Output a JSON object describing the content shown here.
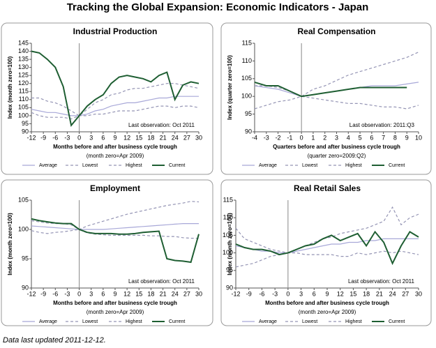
{
  "title": "Tracking the Global Expansion: Economic Indicators - Japan",
  "footer": "Data last updated 2011-12-12.",
  "chart_data": [
    {
      "type": "line",
      "title": "Industrial Production",
      "ylabel": "Index (month zero=100)",
      "xlabel": "Months before and after business cycle trough",
      "x_note": "(month zero=Apr 2009)",
      "annotation": "Last observation: Oct 2011",
      "x": [
        -12,
        -10,
        -8,
        -6,
        -4,
        -2,
        0,
        2,
        4,
        6,
        8,
        10,
        12,
        14,
        16,
        18,
        20,
        22,
        24,
        26,
        28,
        30
      ],
      "xlim": [
        -12,
        30
      ],
      "xticks": [
        -12,
        -9,
        -6,
        -3,
        0,
        3,
        6,
        9,
        12,
        15,
        18,
        21,
        24,
        27,
        30
      ],
      "ylim": [
        90,
        145
      ],
      "yticks": [
        90,
        95,
        100,
        105,
        110,
        115,
        120,
        125,
        130,
        135,
        140,
        145
      ],
      "series": [
        {
          "name": "Average",
          "color": "#a8a8d8",
          "dashed": false,
          "values": [
            104,
            103,
            102,
            102,
            101,
            100,
            100,
            101,
            103,
            104,
            106,
            107,
            108,
            108,
            109,
            110,
            111,
            111,
            112,
            112,
            112,
            112
          ]
        },
        {
          "name": "Lowest",
          "color": "#9494b4",
          "dashed": true,
          "values": [
            102,
            100,
            99,
            99,
            99,
            98,
            100,
            100,
            101,
            101,
            102,
            103,
            103,
            103,
            104,
            105,
            106,
            106,
            105,
            106,
            106,
            105
          ]
        },
        {
          "name": "Highest",
          "color": "#9494b4",
          "dashed": true,
          "values": [
            111,
            111,
            109,
            108,
            106,
            103,
            100,
            104,
            108,
            110,
            113,
            114,
            116,
            117,
            117,
            118,
            119,
            120,
            120,
            119,
            118,
            117
          ]
        },
        {
          "name": "Current",
          "color": "#1e5e32",
          "dashed": false,
          "values": [
            140,
            139,
            135,
            130,
            118,
            94,
            100,
            106,
            110,
            113,
            120,
            124,
            125,
            124,
            123,
            121,
            125,
            127,
            110,
            119,
            121,
            120
          ]
        }
      ]
    },
    {
      "type": "line",
      "title": "Real Compensation",
      "ylabel": "Index (quarter zero=100)",
      "xlabel": "Quarters before and after business cycle trough",
      "x_note": "(quarter zero=2009:Q2)",
      "annotation": "Last observation: 2011:Q3",
      "x": [
        -4,
        -3,
        -2,
        -1,
        0,
        1,
        2,
        3,
        4,
        5,
        6,
        7,
        8,
        9,
        10
      ],
      "xlim": [
        -4,
        10
      ],
      "xticks": [
        -4,
        -3,
        -2,
        -1,
        0,
        1,
        2,
        3,
        4,
        5,
        6,
        7,
        8,
        9,
        10
      ],
      "ylim": [
        90,
        115
      ],
      "yticks": [
        90,
        95,
        100,
        105,
        110,
        115
      ],
      "series": [
        {
          "name": "Average",
          "color": "#a8a8d8",
          "dashed": false,
          "values": [
            103,
            102.5,
            102,
            101,
            100,
            100.5,
            101,
            101.5,
            102,
            102.5,
            103,
            103,
            103,
            103.5,
            104
          ]
        },
        {
          "name": "Lowest",
          "color": "#9494b4",
          "dashed": true,
          "values": [
            96.5,
            97.5,
            98.5,
            99,
            100,
            99.5,
            99,
            98.5,
            98,
            98,
            97.5,
            97,
            97,
            96.5,
            97.5
          ]
        },
        {
          "name": "Highest",
          "color": "#9494b4",
          "dashed": true,
          "values": [
            103,
            103,
            102.5,
            101.5,
            100,
            102,
            103,
            104.5,
            106,
            107,
            108,
            109,
            110,
            111,
            112.5
          ]
        },
        {
          "name": "Current",
          "color": "#1e5e32",
          "dashed": false,
          "values": [
            104,
            103,
            103,
            101.5,
            100,
            100.5,
            101,
            101.5,
            102,
            102.5,
            102.5,
            102.5,
            102.5,
            102.5,
            null
          ]
        }
      ]
    },
    {
      "type": "line",
      "title": "Employment",
      "ylabel": "Index (month zero=100)",
      "xlabel": "Months before and after business cycle trough",
      "x_note": "(month zero=Apr 2009)",
      "annotation": "Last observation: Oct 2011",
      "x": [
        -12,
        -10,
        -8,
        -6,
        -4,
        -2,
        0,
        2,
        4,
        6,
        8,
        10,
        12,
        14,
        16,
        18,
        20,
        22,
        24,
        26,
        28,
        30
      ],
      "xlim": [
        -12,
        30
      ],
      "xticks": [
        -12,
        -9,
        -6,
        -3,
        0,
        3,
        6,
        9,
        12,
        15,
        18,
        21,
        24,
        27,
        30
      ],
      "ylim": [
        90,
        105
      ],
      "yticks": [
        90,
        95,
        100,
        105
      ],
      "series": [
        {
          "name": "Average",
          "color": "#a8a8d8",
          "dashed": false,
          "values": [
            100.6,
            100.5,
            100.4,
            100.3,
            100.2,
            100.1,
            100,
            100,
            100,
            100,
            100.1,
            100.2,
            100.3,
            100.4,
            100.5,
            100.6,
            100.7,
            100.8,
            100.9,
            101,
            101,
            101
          ]
        },
        {
          "name": "Lowest",
          "color": "#9494b4",
          "dashed": true,
          "values": [
            99.8,
            99.5,
            99.3,
            99.5,
            99.6,
            99.8,
            100,
            99.4,
            99.2,
            99.1,
            99,
            99,
            99,
            99,
            99,
            98.9,
            98.9,
            98.8,
            98.8,
            98.6,
            98.5,
            98.5
          ]
        },
        {
          "name": "Highest",
          "color": "#9494b4",
          "dashed": true,
          "values": [
            101.5,
            101.3,
            101.1,
            101,
            101,
            100.8,
            100,
            100.6,
            101,
            101.4,
            101.8,
            102.2,
            102.6,
            102.9,
            103.2,
            103.5,
            103.8,
            104.1,
            104.3,
            104.5,
            104.8,
            104.7
          ]
        },
        {
          "name": "Current",
          "color": "#1e5e32",
          "dashed": false,
          "values": [
            101.8,
            101.5,
            101.3,
            101.1,
            101,
            101,
            100,
            99.5,
            99.3,
            99.3,
            99.3,
            99.2,
            99.2,
            99.3,
            99.5,
            99.6,
            99.7,
            95,
            94.7,
            94.6,
            94.4,
            99.2
          ]
        }
      ]
    },
    {
      "type": "line",
      "title": "Real Retail Sales",
      "ylabel": "Index (month zero=100)",
      "xlabel": "Months before and after business cycle trough",
      "x_note": "(month zero=Apr 2009)",
      "annotation": "Last observation: Oct 2011",
      "x": [
        -12,
        -10,
        -8,
        -6,
        -4,
        -2,
        0,
        2,
        4,
        6,
        8,
        10,
        12,
        14,
        16,
        18,
        20,
        22,
        24,
        26,
        28,
        30
      ],
      "xlim": [
        -12,
        30
      ],
      "xticks": [
        -12,
        -9,
        -6,
        -3,
        0,
        3,
        6,
        9,
        12,
        15,
        18,
        21,
        24,
        27,
        30
      ],
      "ylim": [
        90,
        115
      ],
      "yticks": [
        90,
        95,
        100,
        105,
        110,
        115
      ],
      "series": [
        {
          "name": "Average",
          "color": "#a8a8d8",
          "dashed": false,
          "values": [
            102,
            101.5,
            101,
            100.5,
            100.5,
            100,
            100,
            100.5,
            101,
            101.5,
            102,
            102.5,
            102.5,
            103,
            103,
            103.5,
            103.5,
            104,
            104,
            104,
            104,
            104
          ]
        },
        {
          "name": "Lowest",
          "color": "#9494b4",
          "dashed": true,
          "values": [
            96,
            96.5,
            97,
            98,
            99,
            99.5,
            100,
            100,
            99.5,
            99.5,
            99.5,
            99.5,
            99,
            99,
            100,
            99.5,
            100,
            100.5,
            100,
            100.5,
            100,
            99.5
          ]
        },
        {
          "name": "Highest",
          "color": "#9494b4",
          "dashed": true,
          "values": [
            107,
            104,
            103,
            102,
            101,
            100.5,
            100,
            101,
            102,
            103,
            104,
            104.5,
            105.5,
            106,
            106.5,
            107,
            108,
            109,
            113,
            108,
            110,
            111
          ]
        },
        {
          "name": "Current",
          "color": "#1e5e32",
          "dashed": false,
          "values": [
            102.5,
            101.5,
            101,
            101,
            100.5,
            99.5,
            100,
            101,
            102,
            102.5,
            104,
            105,
            103.5,
            104.5,
            105.5,
            102,
            106,
            103,
            97,
            102,
            106,
            104.5
          ]
        }
      ]
    }
  ]
}
